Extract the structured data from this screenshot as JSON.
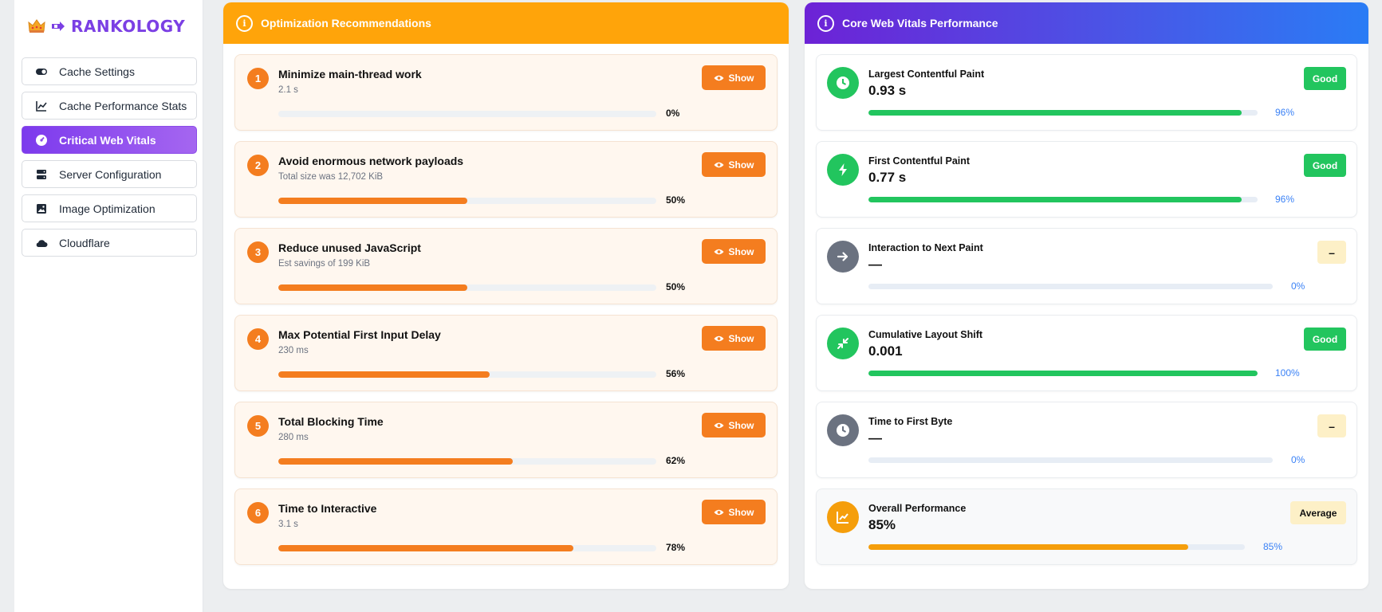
{
  "brand": {
    "name": "RANKOLOGY"
  },
  "sidebar": {
    "items": [
      {
        "label": "Cache Settings",
        "icon": "toggle-icon",
        "active": false
      },
      {
        "label": "Cache Performance Stats",
        "icon": "line-chart-icon",
        "active": false
      },
      {
        "label": "Critical Web Vitals",
        "icon": "gauge-icon",
        "active": true
      },
      {
        "label": "Server Configuration",
        "icon": "server-icon",
        "active": false
      },
      {
        "label": "Image Optimization",
        "icon": "image-icon",
        "active": false
      },
      {
        "label": "Cloudflare",
        "icon": "cloud-icon",
        "active": false
      }
    ]
  },
  "recommendations": {
    "title": "Optimization Recommendations",
    "show_label": "Show",
    "items": [
      {
        "num": "1",
        "title": "Minimize main-thread work",
        "subtitle": "2.1 s",
        "pct_label": "0%",
        "percent": 0
      },
      {
        "num": "2",
        "title": "Avoid enormous network payloads",
        "subtitle": "Total size was 12,702 KiB",
        "pct_label": "50%",
        "percent": 50
      },
      {
        "num": "3",
        "title": "Reduce unused JavaScript",
        "subtitle": "Est savings of 199 KiB",
        "pct_label": "50%",
        "percent": 50
      },
      {
        "num": "4",
        "title": "Max Potential First Input Delay",
        "subtitle": "230 ms",
        "pct_label": "56%",
        "percent": 56
      },
      {
        "num": "5",
        "title": "Total Blocking Time",
        "subtitle": "280 ms",
        "pct_label": "62%",
        "percent": 62
      },
      {
        "num": "6",
        "title": "Time to Interactive",
        "subtitle": "3.1 s",
        "pct_label": "78%",
        "percent": 78
      }
    ]
  },
  "vitals": {
    "title": "Core Web Vitals Performance",
    "items": [
      {
        "name": "Largest Contentful Paint",
        "value": "0.93 s",
        "badge": "Good",
        "badge_type": "good",
        "pct_label": "96%",
        "percent": 96,
        "icon": "clock-icon",
        "icon_color": "#22c55e",
        "bar_color": "#22c55e"
      },
      {
        "name": "First Contentful Paint",
        "value": "0.77 s",
        "badge": "Good",
        "badge_type": "good",
        "pct_label": "96%",
        "percent": 96,
        "icon": "bolt-icon",
        "icon_color": "#22c55e",
        "bar_color": "#22c55e"
      },
      {
        "name": "Interaction to Next Paint",
        "value": "—",
        "badge": "–",
        "badge_type": "none",
        "pct_label": "0%",
        "percent": 0,
        "icon": "arrow-right-icon",
        "icon_color": "#6b7280",
        "bar_color": "#22c55e"
      },
      {
        "name": "Cumulative Layout Shift",
        "value": "0.001",
        "badge": "Good",
        "badge_type": "good",
        "pct_label": "100%",
        "percent": 100,
        "icon": "compress-icon",
        "icon_color": "#22c55e",
        "bar_color": "#22c55e"
      },
      {
        "name": "Time to First Byte",
        "value": "—",
        "badge": "–",
        "badge_type": "none",
        "pct_label": "0%",
        "percent": 0,
        "icon": "clock-icon",
        "icon_color": "#6b7280",
        "bar_color": "#22c55e"
      },
      {
        "name": "Overall Performance",
        "value": "85%",
        "badge": "Average",
        "badge_type": "avg",
        "pct_label": "85%",
        "percent": 85,
        "icon": "trend-chart-icon",
        "icon_color": "#f59e0b",
        "bar_color": "#f59e0b"
      }
    ]
  }
}
